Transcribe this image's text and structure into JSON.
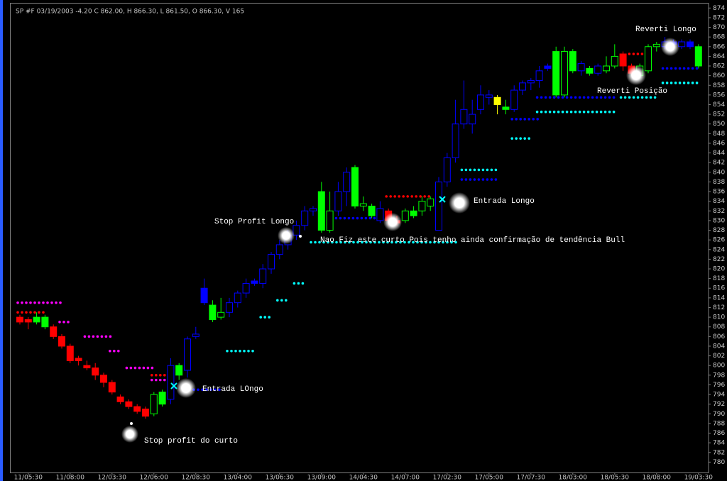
{
  "chart_data": {
    "type": "candlestick",
    "title": "SP #F 03/19/2003  -4.20 C 862.00, H 866.30, L 861.50, O 866.30, V   165",
    "categories": [
      null,
      "11/05:30",
      null,
      null,
      null,
      null,
      "11/08:00",
      null,
      null,
      null,
      null,
      "12/03:30",
      null,
      null,
      null,
      null,
      "12/06:00",
      null,
      null,
      null,
      null,
      "12/08:30",
      null,
      null,
      null,
      null,
      "13/04:00",
      null,
      null,
      null,
      null,
      "13/06:30",
      null,
      null,
      null,
      null,
      "13/09:00",
      null,
      null,
      null,
      null,
      "14/04:30",
      null,
      null,
      null,
      null,
      "14/07:00",
      null,
      null,
      null,
      null,
      "17/02:30",
      null,
      null,
      null,
      null,
      "17/05:00",
      null,
      null,
      null,
      null,
      "17/07:30",
      null,
      null,
      null,
      null,
      "18/03:00",
      null,
      null,
      null,
      null,
      "18/05:30",
      null,
      null,
      null,
      null,
      "18/08:00",
      null,
      null,
      null,
      null,
      "19/03:30"
    ],
    "open": [
      810,
      809.5,
      809,
      810,
      808,
      806,
      804,
      801.5,
      800,
      799.5,
      798,
      796.5,
      793.5,
      792.5,
      791.5,
      791,
      790,
      792,
      793,
      798,
      799,
      806,
      813,
      812.5,
      810,
      811,
      813,
      815,
      817.5,
      817,
      820,
      823,
      825,
      827,
      829,
      832,
      828,
      828,
      832,
      836,
      841,
      833,
      833,
      830,
      832,
      830,
      830,
      831,
      832,
      833,
      828,
      838,
      843,
      850,
      850,
      853,
      855.5,
      854,
      853.5,
      853,
      857,
      858.5,
      859,
      861.5,
      856,
      856,
      865,
      861,
      860.5,
      860.5,
      861,
      862,
      864.5,
      862,
      860,
      861,
      866,
      866,
      867,
      866,
      866,
      866
    ],
    "high": [
      810.5,
      810,
      811,
      810.5,
      808.5,
      806.5,
      804.5,
      802,
      801,
      800.5,
      798.5,
      797,
      794,
      793,
      792,
      791.5,
      794.5,
      795,
      801.5,
      800.5,
      806,
      808,
      818,
      813.5,
      814,
      814,
      815.5,
      818,
      818,
      821,
      823.5,
      826,
      828,
      830,
      833,
      833,
      838,
      836,
      838,
      841,
      841.5,
      835,
      833.5,
      834,
      832.5,
      831,
      832.5,
      833,
      835,
      835,
      839,
      844,
      855,
      859,
      855,
      858,
      857,
      856,
      855,
      858,
      859,
      859.5,
      862,
      862.5,
      866,
      866,
      865.5,
      863,
      862,
      862.5,
      864,
      866.5,
      865,
      862.5,
      862.5,
      866.5,
      867,
      868,
      867.5,
      867.5,
      867.5,
      866.5
    ],
    "low": [
      808.5,
      807.5,
      808.5,
      807.5,
      805.5,
      803.5,
      800.5,
      800,
      799,
      797,
      795.5,
      794,
      792,
      791,
      790,
      789,
      789.5,
      791.5,
      792,
      797,
      797.5,
      805.5,
      812.5,
      809,
      809.5,
      810,
      812,
      814,
      816.5,
      816,
      819,
      822,
      824,
      826,
      828,
      831,
      827.5,
      827.5,
      831,
      833,
      832.5,
      832,
      830.5,
      829.5,
      829,
      829,
      829.5,
      830.5,
      831,
      832,
      828,
      837,
      842,
      849,
      848,
      852,
      854,
      852,
      852,
      852.5,
      856,
      857,
      857.5,
      861,
      855.5,
      855.5,
      860.5,
      860,
      860,
      860,
      860.5,
      861.5,
      861,
      860,
      859.5,
      860.5,
      865,
      865.5,
      866,
      865.5,
      865.5,
      861.5
    ],
    "close": [
      809,
      809,
      810,
      808,
      806,
      804,
      801,
      801,
      799.5,
      798,
      796.5,
      794.5,
      792.5,
      791.5,
      790.5,
      789.5,
      794,
      794.5,
      800,
      800,
      805.5,
      806.5,
      816,
      809.5,
      811,
      813,
      815,
      817,
      817,
      820,
      823,
      825,
      827,
      829,
      832,
      832.5,
      836,
      832,
      836,
      840,
      833,
      833.5,
      831,
      832.5,
      830,
      829.5,
      832,
      832,
      834,
      834.5,
      838,
      843,
      850,
      853,
      852,
      856,
      856,
      855.5,
      853,
      857,
      858.5,
      859,
      861,
      862,
      865,
      865,
      861,
      862.5,
      861.5,
      862,
      862,
      864,
      862,
      860.5,
      862,
      866,
      866.5,
      867,
      866.5,
      867,
      867,
      862
    ],
    "colors": [
      "#ff0000",
      "#ff0000",
      "#00ff00",
      "#00ff00",
      "#ff0000",
      "#ff0000",
      "#ff0000",
      "#ff0000",
      "#ff0000",
      "#ff0000",
      "#ff0000",
      "#ff0000",
      "#ff0000",
      "#ff0000",
      "#ff0000",
      "#ff0000",
      "#00ff00",
      "#00ff00",
      "#0000ff",
      "#00ff00",
      "#0000ff",
      "#0000ff",
      "#0000ff",
      "#00ff00",
      "#00ff00",
      "#0000ff",
      "#0000ff",
      "#0000ff",
      "#0000ff",
      "#0000ff",
      "#0000ff",
      "#0000ff",
      "#0000ff",
      "#0000ff",
      "#0000ff",
      "#0000ff",
      "#00ff00",
      "#00ff00",
      "#0000ff",
      "#0000ff",
      "#00ff00",
      "#00ff00",
      "#00ff00",
      "#0000ff",
      "#ff0000",
      "#ff0000",
      "#00ff00",
      "#00ff00",
      "#00ff00",
      "#00ff00",
      "#0000ff",
      "#0000ff",
      "#0000ff",
      "#0000ff",
      "#0000ff",
      "#0000ff",
      "#0000ff",
      "#ffff00",
      "#00ff00",
      "#0000ff",
      "#0000ff",
      "#0000ff",
      "#0000ff",
      "#0000ff",
      "#00ff00",
      "#00ff00",
      "#00ff00",
      "#0000ff",
      "#00ff00",
      "#0000ff",
      "#00ff00",
      "#00ff00",
      "#ff0000",
      "#ff0000",
      "#00ff00",
      "#00ff00",
      "#00ff00",
      "#0000ff",
      "#0000ff",
      "#0000ff",
      "#0000ff",
      "#00ff00"
    ],
    "hollow": [
      false,
      false,
      false,
      false,
      false,
      false,
      false,
      false,
      false,
      false,
      false,
      false,
      false,
      false,
      false,
      false,
      true,
      false,
      true,
      false,
      true,
      true,
      false,
      false,
      true,
      true,
      true,
      true,
      false,
      true,
      true,
      true,
      true,
      true,
      true,
      true,
      false,
      true,
      true,
      true,
      false,
      true,
      false,
      true,
      false,
      false,
      true,
      false,
      true,
      true,
      true,
      true,
      true,
      true,
      true,
      true,
      true,
      false,
      false,
      true,
      true,
      true,
      true,
      false,
      false,
      true,
      false,
      true,
      false,
      true,
      true,
      true,
      false,
      false,
      true,
      true,
      true,
      true,
      false,
      true,
      false,
      false
    ],
    "stops": [
      {
        "color": "#ff00ff",
        "value": 813,
        "from": 0,
        "to": 5
      },
      {
        "color": "#ff0000",
        "value": 811,
        "from": 0,
        "to": 3
      },
      {
        "color": "#ff00ff",
        "value": 809,
        "from": 5,
        "to": 6
      },
      {
        "color": "#ff00ff",
        "value": 806,
        "from": 8,
        "to": 11
      },
      {
        "color": "#ff00ff",
        "value": 803,
        "from": 11,
        "to": 12
      },
      {
        "color": "#ff00ff",
        "value": 799.5,
        "from": 13,
        "to": 16
      },
      {
        "color": "#ff00ff",
        "value": 797,
        "from": 16,
        "to": 18
      },
      {
        "color": "#ff0000",
        "value": 798,
        "from": 16,
        "to": 18
      },
      {
        "color": "#0000ff",
        "value": 795,
        "from": 20,
        "to": 24
      },
      {
        "color": "#00ffff",
        "value": 803,
        "from": 25,
        "to": 28
      },
      {
        "color": "#00ffff",
        "value": 810,
        "from": 29,
        "to": 30
      },
      {
        "color": "#00ffff",
        "value": 813.5,
        "from": 31,
        "to": 32
      },
      {
        "color": "#00ffff",
        "value": 817,
        "from": 33,
        "to": 34
      },
      {
        "color": "#00ffff",
        "value": 825.5,
        "from": 35,
        "to": 52
      },
      {
        "color": "#0000ff",
        "value": 830.5,
        "from": 38,
        "to": 43
      },
      {
        "color": "#ff0000",
        "value": 835,
        "from": 44,
        "to": 49
      },
      {
        "color": "#00ffff",
        "value": 840.5,
        "from": 53,
        "to": 57
      },
      {
        "color": "#0000ff",
        "value": 838.5,
        "from": 53,
        "to": 57
      },
      {
        "color": "#00ffff",
        "value": 847,
        "from": 59,
        "to": 61
      },
      {
        "color": "#0000ff",
        "value": 851,
        "from": 59,
        "to": 62
      },
      {
        "color": "#00ffff",
        "value": 852.5,
        "from": 62,
        "to": 71
      },
      {
        "color": "#0000ff",
        "value": 855.5,
        "from": 62,
        "to": 71
      },
      {
        "color": "#00ffff",
        "value": 855.5,
        "from": 72,
        "to": 76
      },
      {
        "color": "#00ffff",
        "value": 858.5,
        "from": 77,
        "to": 81
      },
      {
        "color": "#0000ff",
        "value": 861.5,
        "from": 77,
        "to": 81
      },
      {
        "color": "#ff0000",
        "value": 864.5,
        "from": 73,
        "to": 75
      }
    ],
    "annotations": [
      "Stop profit do curto",
      "Entrada LOngo",
      "Stop Profit Longo",
      "Nao Fiz este curto Pois tenho ainda confirmação de tendência Bull",
      "Entrada Longo",
      "Reverti Longo",
      "Reverti Posição"
    ],
    "ylim": [
      778,
      875
    ],
    "yticks": [
      780,
      782,
      784,
      786,
      788,
      790,
      792,
      794,
      796,
      798,
      800,
      802,
      804,
      806,
      808,
      810,
      812,
      814,
      816,
      818,
      820,
      822,
      824,
      826,
      828,
      830,
      832,
      834,
      836,
      838,
      840,
      842,
      844,
      846,
      848,
      850,
      852,
      854,
      856,
      858,
      860,
      862,
      864,
      866,
      868,
      870,
      872,
      874
    ]
  }
}
